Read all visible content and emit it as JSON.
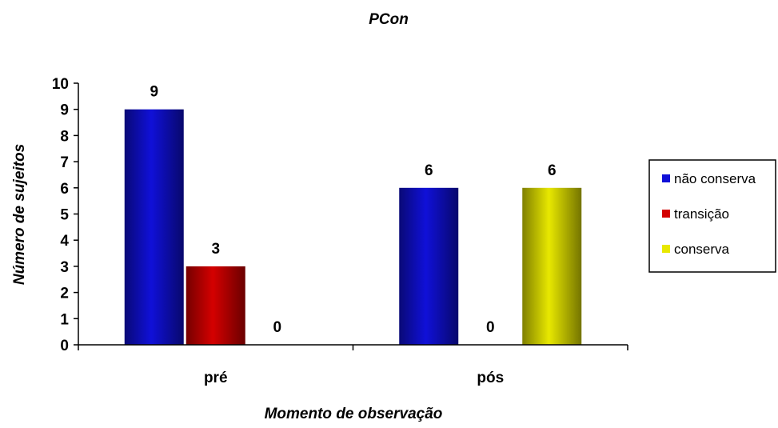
{
  "chart_data": {
    "type": "bar",
    "title": "PCon",
    "xlabel": "Momento de observação",
    "ylabel": "Número de sujeitos",
    "categories": [
      "pré",
      "pós"
    ],
    "series": [
      {
        "name": "não conserva",
        "values": [
          9,
          6
        ],
        "color": "#1010d8"
      },
      {
        "name": "transição",
        "values": [
          3,
          0
        ],
        "color": "#d40000"
      },
      {
        "name": "conserva",
        "values": [
          0,
          6
        ],
        "color": "#e8e800"
      }
    ],
    "ylim": [
      0,
      10
    ],
    "yticks": [
      0,
      1,
      2,
      3,
      4,
      5,
      6,
      7,
      8,
      9,
      10
    ],
    "data_labels": true,
    "grid": false,
    "legend_position": "right"
  }
}
